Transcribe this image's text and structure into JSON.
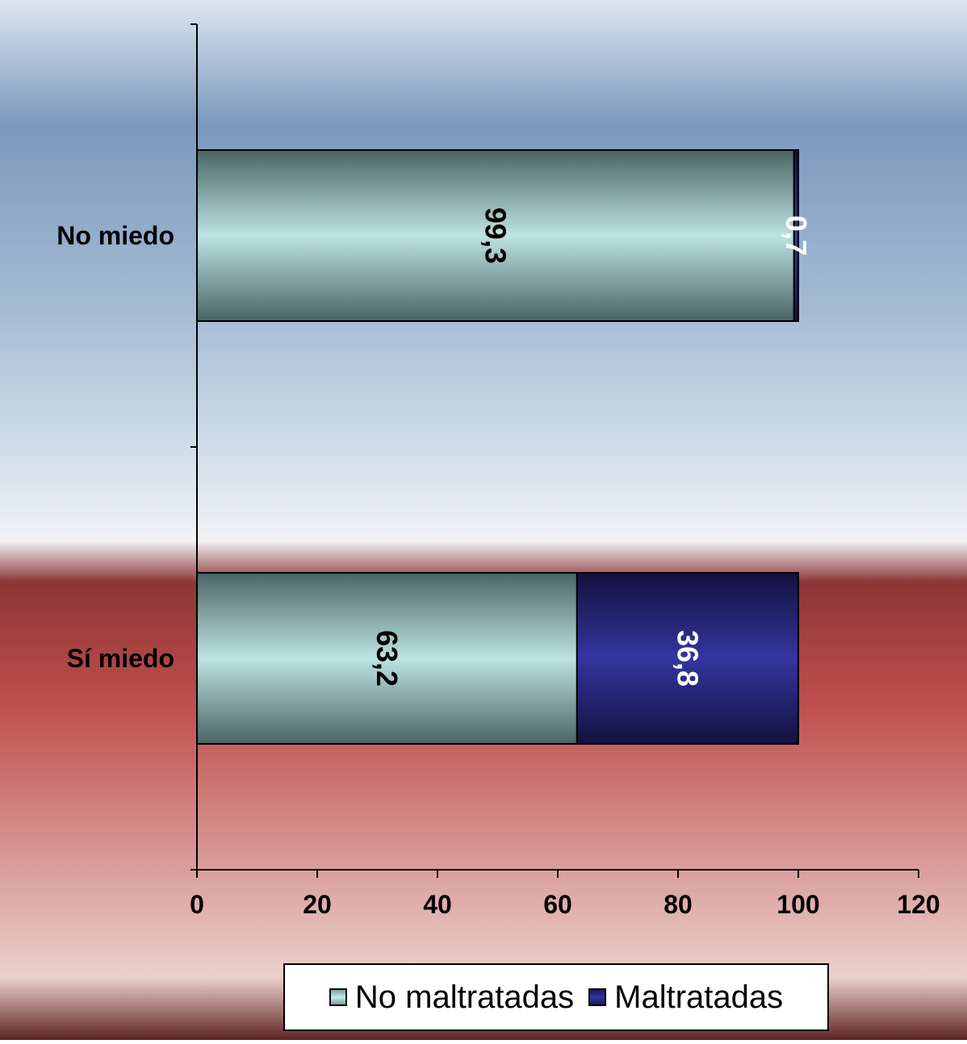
{
  "chart_data": {
    "type": "bar",
    "orientation": "horizontal",
    "stacked": true,
    "categories": [
      "No miedo",
      "Sí miedo"
    ],
    "series": [
      {
        "name": "No maltratadas",
        "values": [
          99.3,
          63.2
        ],
        "labels": [
          "99,3",
          "63,2"
        ],
        "color": "#b8e0e0"
      },
      {
        "name": "Maltratadas",
        "values": [
          0.7,
          36.8
        ],
        "labels": [
          "0,7",
          "36,8"
        ],
        "color": "#2e2e8f"
      }
    ],
    "xlim": [
      0,
      120
    ],
    "xticks": [
      {
        "value": 0,
        "label": "0"
      },
      {
        "value": 20,
        "label": "20"
      },
      {
        "value": 40,
        "label": "40"
      },
      {
        "value": 60,
        "label": "60"
      },
      {
        "value": 80,
        "label": "80"
      },
      {
        "value": 100,
        "label": "100"
      },
      {
        "value": 120,
        "label": "120"
      }
    ],
    "grid": false,
    "legend_position": "bottom",
    "title": "",
    "xlabel": "",
    "ylabel": ""
  }
}
